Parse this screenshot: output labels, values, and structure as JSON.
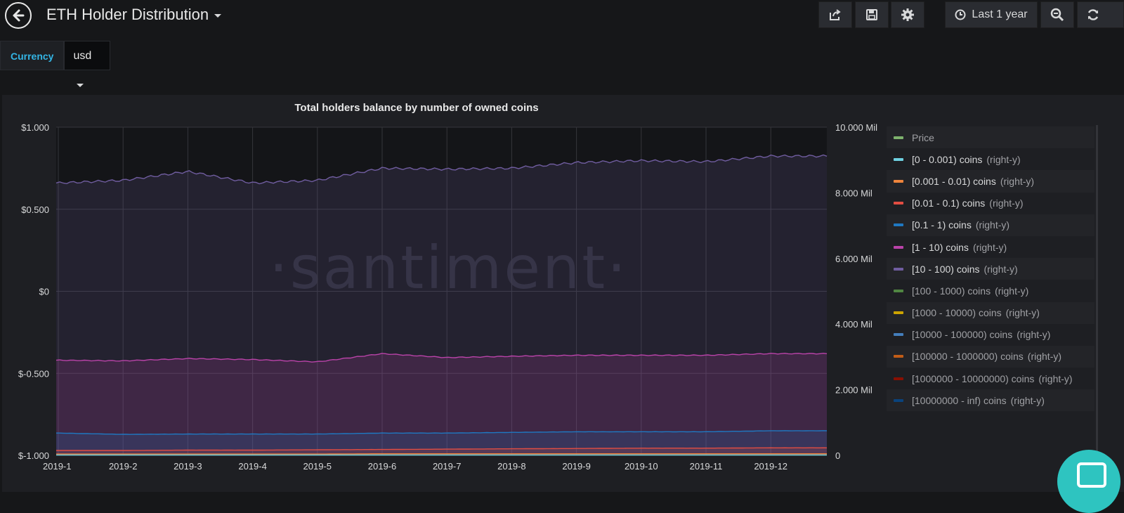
{
  "navbar": {
    "title": "ETH Holder Distribution",
    "time_range_label": "Last 1 year",
    "icons": [
      "back-arrow-icon",
      "share-icon",
      "save-icon",
      "gear-icon",
      "clock-icon",
      "zoom-out-icon",
      "refresh-icon"
    ]
  },
  "variables": {
    "currency_label": "Currency",
    "currency_value": "usd"
  },
  "panel": {
    "title": "Total holders balance by number of owned coins",
    "watermark": "·santiment·"
  },
  "legend": [
    {
      "name": "Price",
      "suffix": "",
      "color": "#7eb26d",
      "hidden": true
    },
    {
      "name": "[0 - 0.001) coins",
      "suffix": "(right-y)",
      "color": "#6ed0e0",
      "hidden": false
    },
    {
      "name": "[0.001 - 0.01) coins",
      "suffix": "(right-y)",
      "color": "#ef843c",
      "hidden": false
    },
    {
      "name": "[0.01 - 0.1) coins",
      "suffix": "(right-y)",
      "color": "#e24d42",
      "hidden": false
    },
    {
      "name": "[0.1 - 1) coins",
      "suffix": "(right-y)",
      "color": "#1f78c1",
      "hidden": false
    },
    {
      "name": "[1 - 10) coins",
      "suffix": "(right-y)",
      "color": "#ba43a9",
      "hidden": false
    },
    {
      "name": "[10 - 100) coins",
      "suffix": "(right-y)",
      "color": "#705da0",
      "hidden": false
    },
    {
      "name": "[100 - 1000) coins",
      "suffix": "(right-y)",
      "color": "#508642",
      "hidden": true
    },
    {
      "name": "[1000 - 10000) coins",
      "suffix": "(right-y)",
      "color": "#cca300",
      "hidden": true
    },
    {
      "name": "[10000 - 100000) coins",
      "suffix": "(right-y)",
      "color": "#447ebc",
      "hidden": true
    },
    {
      "name": "[100000 - 1000000) coins",
      "suffix": "(right-y)",
      "color": "#c15c17",
      "hidden": true
    },
    {
      "name": "[1000000 - 10000000) coins",
      "suffix": "(right-y)",
      "color": "#890f02",
      "hidden": true
    },
    {
      "name": "[10000000 - inf) coins",
      "suffix": "(right-y)",
      "color": "#0a437c",
      "hidden": true
    }
  ],
  "chart_data": {
    "type": "area",
    "title": "Total holders balance by number of owned coins",
    "x": [
      "2019-1",
      "2019-2",
      "2019-3",
      "2019-4",
      "2019-5",
      "2019-6",
      "2019-7",
      "2019-8",
      "2019-9",
      "2019-10",
      "2019-11",
      "2019-12"
    ],
    "left_axis": {
      "ticks": [
        "$1.000",
        "$0.500",
        "$0",
        "$-0.500",
        "$-1.000"
      ],
      "range": [
        -1.0,
        1.0
      ]
    },
    "right_axis": {
      "ticks": [
        "10.000 Mil",
        "8.000 Mil",
        "6.000 Mil",
        "4.000 Mil",
        "2.000 Mil",
        "0"
      ],
      "range_mil": [
        0,
        10
      ]
    },
    "grid": true,
    "legend_position": "right",
    "series": [
      {
        "name": "[10 - 100) coins",
        "color": "#705da0",
        "values_mil": [
          8.3,
          8.38,
          8.65,
          8.3,
          8.38,
          8.75,
          8.72,
          8.75,
          8.92,
          8.98,
          8.95,
          9.12
        ]
      },
      {
        "name": "[1 - 10) coins",
        "color": "#ba43a9",
        "values_mil": [
          2.9,
          2.88,
          2.95,
          2.92,
          2.85,
          3.1,
          2.98,
          3.02,
          3.05,
          3.05,
          3.05,
          3.1
        ]
      },
      {
        "name": "[0.1 - 1) coins",
        "color": "#1f78c1",
        "values_mil": [
          0.68,
          0.64,
          0.65,
          0.65,
          0.65,
          0.68,
          0.68,
          0.7,
          0.72,
          0.72,
          0.72,
          0.75
        ]
      },
      {
        "name": "[0.01 - 0.1) coins",
        "color": "#e24d42",
        "values_mil": [
          0.15,
          0.15,
          0.16,
          0.16,
          0.17,
          0.18,
          0.19,
          0.2,
          0.21,
          0.22,
          0.22,
          0.23
        ]
      },
      {
        "name": "[0.001 - 0.01) coins",
        "color": "#ef843c",
        "values_mil": [
          0.04,
          0.04,
          0.04,
          0.04,
          0.04,
          0.05,
          0.05,
          0.05,
          0.05,
          0.05,
          0.05,
          0.05
        ]
      },
      {
        "name": "[0 - 0.001) coins",
        "color": "#6ed0e0",
        "values_mil": [
          0.01,
          0.01,
          0.01,
          0.01,
          0.01,
          0.01,
          0.01,
          0.01,
          0.01,
          0.01,
          0.01,
          0.01
        ]
      }
    ]
  }
}
